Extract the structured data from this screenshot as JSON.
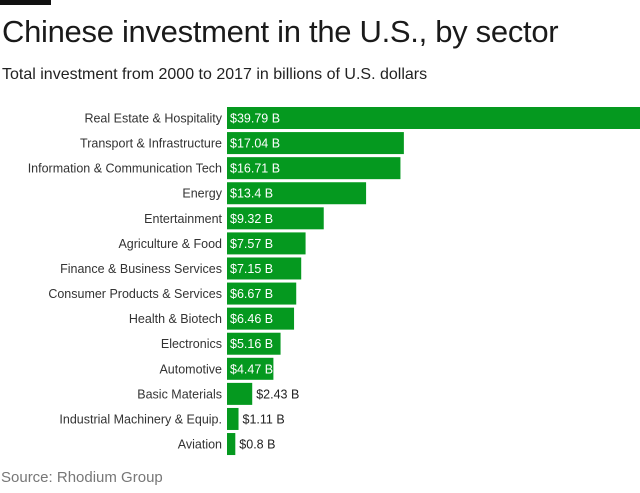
{
  "chart_data": {
    "type": "bar",
    "orientation": "horizontal",
    "title": "Chinese investment in the U.S., by sector",
    "subtitle": "Total investment from 2000 to 2017 in billions of U.S. dollars",
    "source": "Source: Rhodium Group",
    "categories": [
      "Real Estate & Hospitality",
      "Transport & Infrastructure",
      "Information & Communication Tech",
      "Energy",
      "Entertainment",
      "Agriculture & Food",
      "Finance & Business Services",
      "Consumer Products & Services",
      "Health & Biotech",
      "Electronics",
      "Automotive",
      "Basic Materials",
      "Industrial Machinery & Equip.",
      "Aviation"
    ],
    "values": [
      39.79,
      17.04,
      16.71,
      13.4,
      9.32,
      7.57,
      7.15,
      6.67,
      6.46,
      5.16,
      4.47,
      2.43,
      1.11,
      0.8
    ],
    "data_labels": [
      "$39.79 B",
      "$17.04 B",
      "$16.71 B",
      "$13.4 B",
      "$9.32 B",
      "$7.57 B",
      "$7.15 B",
      "$6.67 B",
      "$6.46 B",
      "$5.16 B",
      "$4.47 B",
      "$2.43 B",
      "$1.11 B",
      "$0.8 B"
    ],
    "xlim": [
      0,
      39.79
    ],
    "grid": false,
    "colors": {
      "bar": "#05991f",
      "label_inside": "#ffffff",
      "label_outside": "#222222"
    }
  }
}
